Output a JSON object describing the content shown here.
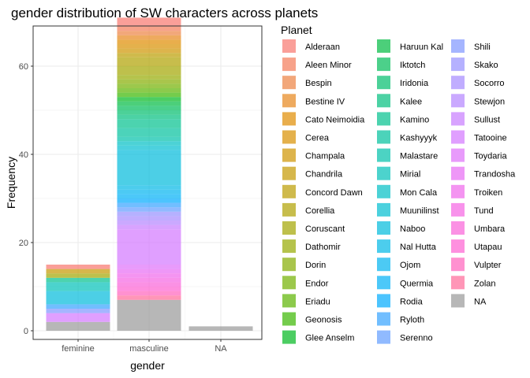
{
  "chart_data": {
    "type": "bar",
    "stacked": true,
    "title": "gender distribution of SW characters across planets",
    "xlabel": "gender",
    "ylabel": "Frequency",
    "categories": [
      "feminine",
      "masculine",
      "NA"
    ],
    "ylim": [
      0,
      69
    ],
    "yticks": [
      0,
      20,
      40,
      60
    ],
    "grid": true,
    "legend": {
      "title": "Planet",
      "position": "right",
      "columns": 3
    },
    "series": [
      {
        "name": "Alderaan",
        "color": "#F8766D",
        "values": [
          1,
          2,
          0
        ]
      },
      {
        "name": "Aleen Minor",
        "color": "#F37B59",
        "values": [
          0,
          1,
          0
        ]
      },
      {
        "name": "Bespin",
        "color": "#ED8141",
        "values": [
          0,
          1,
          0
        ]
      },
      {
        "name": "Bestine IV",
        "color": "#E7861B",
        "values": [
          0,
          1,
          0
        ]
      },
      {
        "name": "Cato Neimoidia",
        "color": "#E08B00",
        "values": [
          0,
          1,
          0
        ]
      },
      {
        "name": "Cerea",
        "color": "#D89000",
        "values": [
          0,
          1,
          0
        ]
      },
      {
        "name": "Champala",
        "color": "#CF9400",
        "values": [
          0,
          1,
          0
        ]
      },
      {
        "name": "Chandrila",
        "color": "#C59900",
        "values": [
          1,
          0,
          0
        ]
      },
      {
        "name": "Concord Dawn",
        "color": "#BB9D00",
        "values": [
          0,
          1,
          0
        ]
      },
      {
        "name": "Corellia",
        "color": "#AFA100",
        "values": [
          0,
          2,
          0
        ]
      },
      {
        "name": "Coruscant",
        "color": "#A3A500",
        "values": [
          1,
          2,
          0
        ]
      },
      {
        "name": "Dathomir",
        "color": "#95A900",
        "values": [
          0,
          1,
          0
        ]
      },
      {
        "name": "Dorin",
        "color": "#85AD00",
        "values": [
          0,
          1,
          0
        ]
      },
      {
        "name": "Endor",
        "color": "#72B000",
        "values": [
          0,
          1,
          0
        ]
      },
      {
        "name": "Eriadu",
        "color": "#5BB300",
        "values": [
          0,
          1,
          0
        ]
      },
      {
        "name": "Geonosis",
        "color": "#39B600",
        "values": [
          0,
          1,
          0
        ]
      },
      {
        "name": "Glee Anselm",
        "color": "#00B81F",
        "values": [
          0,
          1,
          0
        ]
      },
      {
        "name": "Haruun Kal",
        "color": "#00BA42",
        "values": [
          0,
          1,
          0
        ]
      },
      {
        "name": "Iktotch",
        "color": "#00BC59",
        "values": [
          0,
          1,
          0
        ]
      },
      {
        "name": "Iridonia",
        "color": "#00BE6C",
        "values": [
          0,
          1,
          0
        ]
      },
      {
        "name": "Kalee",
        "color": "#00BF7D",
        "values": [
          0,
          1,
          0
        ]
      },
      {
        "name": "Kamino",
        "color": "#00C08D",
        "values": [
          1,
          2,
          0
        ]
      },
      {
        "name": "Kashyyyk",
        "color": "#00C19C",
        "values": [
          0,
          2,
          0
        ]
      },
      {
        "name": "Malastare",
        "color": "#00C1AA",
        "values": [
          0,
          1,
          0
        ]
      },
      {
        "name": "Mirial",
        "color": "#00C0B8",
        "values": [
          2,
          0,
          0
        ]
      },
      {
        "name": "Mon Cala",
        "color": "#00BFC4",
        "values": [
          0,
          1,
          0
        ]
      },
      {
        "name": "Muunilinst",
        "color": "#00BDD0",
        "values": [
          0,
          1,
          0
        ]
      },
      {
        "name": "Naboo",
        "color": "#00BBDB",
        "values": [
          3,
          8,
          0
        ]
      },
      {
        "name": "Nal Hutta",
        "color": "#00B8E5",
        "values": [
          0,
          1,
          0
        ]
      },
      {
        "name": "Ojom",
        "color": "#00B4EF",
        "values": [
          0,
          1,
          0
        ]
      },
      {
        "name": "Quermia",
        "color": "#00B0F6",
        "values": [
          0,
          1,
          0
        ]
      },
      {
        "name": "Rodia",
        "color": "#00ABFD",
        "values": [
          0,
          1,
          0
        ]
      },
      {
        "name": "Ryloth",
        "color": "#35A2FF",
        "values": [
          1,
          1,
          0
        ]
      },
      {
        "name": "Serenno",
        "color": "#619CFF",
        "values": [
          0,
          1,
          0
        ]
      },
      {
        "name": "Shili",
        "color": "#7F96FF",
        "values": [
          1,
          0,
          0
        ]
      },
      {
        "name": "Skako",
        "color": "#9590FF",
        "values": [
          0,
          1,
          0
        ]
      },
      {
        "name": "Socorro",
        "color": "#A58AFF",
        "values": [
          0,
          1,
          0
        ]
      },
      {
        "name": "Stewjon",
        "color": "#B385FF",
        "values": [
          0,
          1,
          0
        ]
      },
      {
        "name": "Sullust",
        "color": "#C77CFF",
        "values": [
          0,
          1,
          0
        ]
      },
      {
        "name": "Tatooine",
        "color": "#D376FF",
        "values": [
          2,
          8,
          0
        ]
      },
      {
        "name": "Toydaria",
        "color": "#DE71F9",
        "values": [
          0,
          1,
          0
        ]
      },
      {
        "name": "Trandosha",
        "color": "#E76BF3",
        "values": [
          0,
          1,
          0
        ]
      },
      {
        "name": "Troiken",
        "color": "#EF67EB",
        "values": [
          0,
          1,
          0
        ]
      },
      {
        "name": "Tund",
        "color": "#F564E3",
        "values": [
          0,
          1,
          0
        ]
      },
      {
        "name": "Umbara",
        "color": "#FA62D9",
        "values": [
          0,
          1,
          0
        ]
      },
      {
        "name": "Utapau",
        "color": "#FD61D1",
        "values": [
          0,
          1,
          0
        ]
      },
      {
        "name": "Vulpter",
        "color": "#FF62BC",
        "values": [
          0,
          1,
          0
        ]
      },
      {
        "name": "Zolan",
        "color": "#FF6A98",
        "values": [
          0,
          1,
          0
        ]
      },
      {
        "name": "NA",
        "color": "#999999",
        "values": [
          2,
          7,
          1
        ]
      }
    ]
  }
}
